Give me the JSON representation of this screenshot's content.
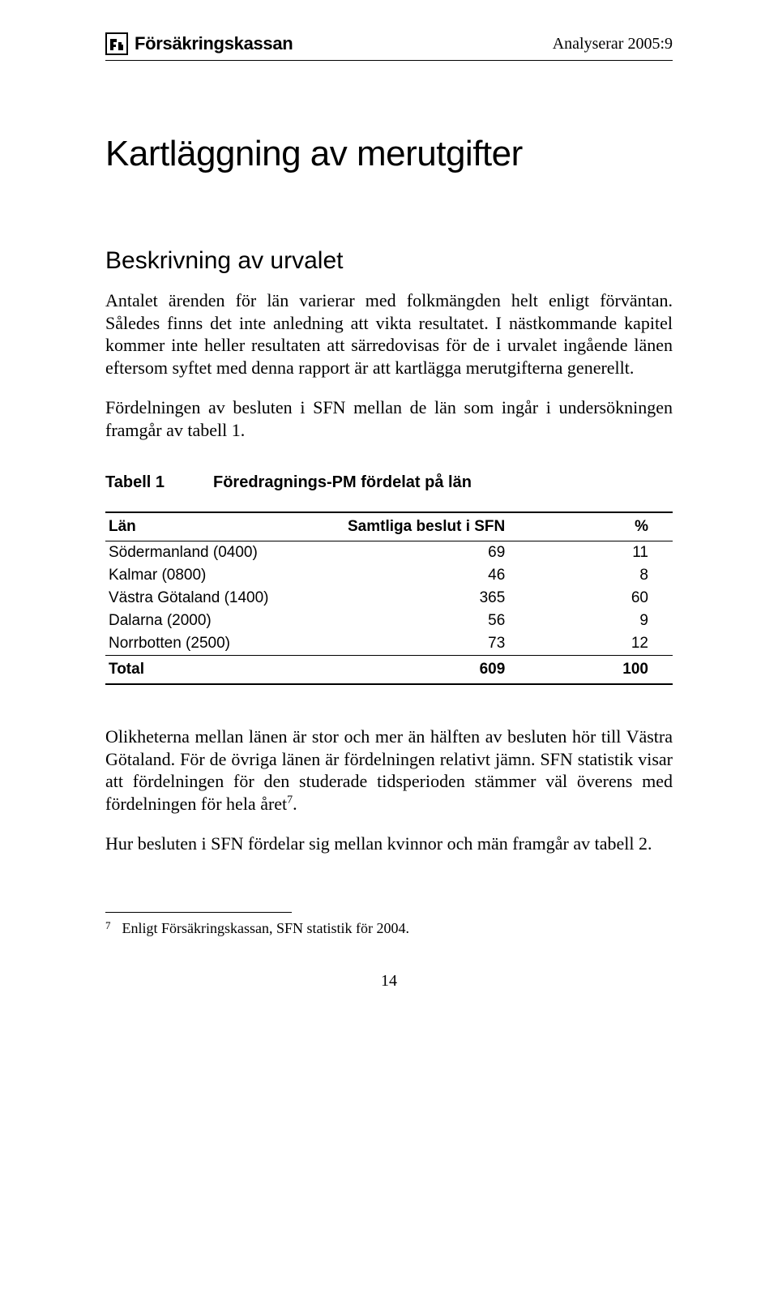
{
  "header": {
    "brand": "Försäkringskassan",
    "right": "Analyserar 2005:9"
  },
  "title": "Kartläggning av merutgifter",
  "subtitle": "Beskrivning av urvalet",
  "para1": "Antalet ärenden för län varierar med folkmängden helt enligt förväntan. Således finns det inte anledning att vikta resultatet. I nästkommande kapitel kommer inte heller resultaten att särredovisas för de i urvalet ingående länen eftersom syftet med denna rapport är att kartlägga merutgifterna generellt.",
  "para2": "Fördelningen av besluten i SFN mellan de län som ingår i undersökningen framgår av tabell 1.",
  "table": {
    "label": "Tabell 1",
    "caption": "Föredragnings-PM fördelat på län",
    "columns": [
      "Län",
      "Samtliga beslut i SFN",
      "%"
    ],
    "rows": [
      {
        "lan": "Södermanland (0400)",
        "beslut": "69",
        "pct": "11"
      },
      {
        "lan": "Kalmar (0800)",
        "beslut": "46",
        "pct": "8"
      },
      {
        "lan": "Västra Götaland (1400)",
        "beslut": "365",
        "pct": "60"
      },
      {
        "lan": "Dalarna (2000)",
        "beslut": "56",
        "pct": "9"
      },
      {
        "lan": "Norrbotten (2500)",
        "beslut": "73",
        "pct": "12"
      }
    ],
    "total": {
      "lan": "Total",
      "beslut": "609",
      "pct": "100"
    }
  },
  "para3_a": "Olikheterna mellan länen är stor och mer än hälften av besluten hör till Västra Götaland. För de övriga länen är fördelningen relativt jämn. SFN statistik visar att fördelningen för den studerade tidsperioden stämmer väl överens med fördelningen för hela året",
  "para3_sup": "7",
  "para3_b": ".",
  "para4": "Hur besluten i SFN fördelar sig mellan kvinnor och män framgår av tabell 2.",
  "footnote": {
    "num": "7",
    "text": "Enligt Försäkringskassan, SFN statistik för 2004."
  },
  "page_number": "14"
}
